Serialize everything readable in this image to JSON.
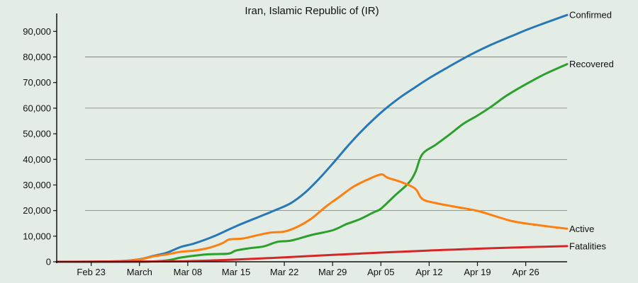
{
  "chart_data": {
    "type": "line",
    "title": "Iran, Islamic Republic of (IR)",
    "xlabel": "",
    "ylabel": "",
    "x_ticks": [
      "Feb 23",
      "March",
      "Mar 08",
      "Mar 15",
      "Mar 22",
      "Mar 29",
      "Apr 05",
      "Apr 12",
      "Apr 19",
      "Apr 26"
    ],
    "y_ticks": [
      "0",
      "10,000",
      "20,000",
      "30,000",
      "40,000",
      "50,000",
      "60,000",
      "70,000",
      "80,000",
      "90,000"
    ],
    "ylim": [
      0,
      97000
    ],
    "xlim": [
      "2020-02-18",
      "2020-05-02"
    ],
    "grid": "horizontal",
    "legend": "end-of-line labels",
    "series": [
      {
        "name": "Confirmed",
        "color": "#2878b8",
        "points": [
          [
            "2020-02-18",
            0
          ],
          [
            "2020-02-23",
            40
          ],
          [
            "2020-02-27",
            250
          ],
          [
            "2020-03-01",
            980
          ],
          [
            "2020-03-03",
            2300
          ],
          [
            "2020-03-05",
            3600
          ],
          [
            "2020-03-07",
            5800
          ],
          [
            "2020-03-09",
            7200
          ],
          [
            "2020-03-12",
            10200
          ],
          [
            "2020-03-15",
            13900
          ],
          [
            "2020-03-18",
            17200
          ],
          [
            "2020-03-21",
            20500
          ],
          [
            "2020-03-23",
            23000
          ],
          [
            "2020-03-25",
            27000
          ],
          [
            "2020-03-27",
            32300
          ],
          [
            "2020-03-29",
            38300
          ],
          [
            "2020-03-31",
            44600
          ],
          [
            "2020-04-02",
            50500
          ],
          [
            "2020-04-04",
            55800
          ],
          [
            "2020-04-06",
            60500
          ],
          [
            "2020-04-08",
            64600
          ],
          [
            "2020-04-10",
            68200
          ],
          [
            "2020-04-12",
            71700
          ],
          [
            "2020-04-15",
            76400
          ],
          [
            "2020-04-18",
            80900
          ],
          [
            "2020-04-21",
            84800
          ],
          [
            "2020-04-24",
            88200
          ],
          [
            "2020-04-27",
            91500
          ],
          [
            "2020-05-02",
            96400
          ]
        ]
      },
      {
        "name": "Recovered",
        "color": "#2ca02c",
        "points": [
          [
            "2020-02-18",
            0
          ],
          [
            "2020-03-01",
            0
          ],
          [
            "2020-03-05",
            550
          ],
          [
            "2020-03-07",
            1650
          ],
          [
            "2020-03-10",
            2700
          ],
          [
            "2020-03-12",
            3000
          ],
          [
            "2020-03-14",
            3200
          ],
          [
            "2020-03-15",
            4400
          ],
          [
            "2020-03-17",
            5300
          ],
          [
            "2020-03-19",
            6000
          ],
          [
            "2020-03-21",
            7800
          ],
          [
            "2020-03-23",
            8300
          ],
          [
            "2020-03-26",
            10500
          ],
          [
            "2020-03-29",
            12300
          ],
          [
            "2020-03-31",
            14700
          ],
          [
            "2020-04-02",
            16700
          ],
          [
            "2020-04-04",
            19400
          ],
          [
            "2020-04-05",
            20700
          ],
          [
            "2020-04-07",
            25800
          ],
          [
            "2020-04-09",
            30700
          ],
          [
            "2020-04-10",
            35000
          ],
          [
            "2020-04-11",
            42000
          ],
          [
            "2020-04-13",
            45800
          ],
          [
            "2020-04-15",
            49800
          ],
          [
            "2020-04-17",
            54000
          ],
          [
            "2020-04-19",
            57100
          ],
          [
            "2020-04-21",
            60600
          ],
          [
            "2020-04-23",
            64500
          ],
          [
            "2020-04-25",
            67800
          ],
          [
            "2020-04-27",
            70800
          ],
          [
            "2020-04-29",
            73600
          ],
          [
            "2020-05-02",
            77200
          ]
        ]
      },
      {
        "name": "Active",
        "color": "#ff7f0e",
        "points": [
          [
            "2020-02-18",
            0
          ],
          [
            "2020-02-23",
            30
          ],
          [
            "2020-02-27",
            250
          ],
          [
            "2020-03-01",
            900
          ],
          [
            "2020-03-03",
            2100
          ],
          [
            "2020-03-05",
            2900
          ],
          [
            "2020-03-07",
            3900
          ],
          [
            "2020-03-09",
            4400
          ],
          [
            "2020-03-11",
            5400
          ],
          [
            "2020-03-13",
            7200
          ],
          [
            "2020-03-14",
            8700
          ],
          [
            "2020-03-16",
            9100
          ],
          [
            "2020-03-18",
            10300
          ],
          [
            "2020-03-20",
            11400
          ],
          [
            "2020-03-22",
            11800
          ],
          [
            "2020-03-24",
            13800
          ],
          [
            "2020-03-26",
            17000
          ],
          [
            "2020-03-28",
            21500
          ],
          [
            "2020-03-30",
            25400
          ],
          [
            "2020-04-01",
            29300
          ],
          [
            "2020-04-03",
            32000
          ],
          [
            "2020-04-05",
            34100
          ],
          [
            "2020-04-06",
            32800
          ],
          [
            "2020-04-08",
            31100
          ],
          [
            "2020-04-10",
            28500
          ],
          [
            "2020-04-11",
            24500
          ],
          [
            "2020-04-13",
            22900
          ],
          [
            "2020-04-16",
            21400
          ],
          [
            "2020-04-19",
            19900
          ],
          [
            "2020-04-21",
            18300
          ],
          [
            "2020-04-24",
            15900
          ],
          [
            "2020-04-27",
            14600
          ],
          [
            "2020-05-02",
            12900
          ]
        ]
      },
      {
        "name": "Fatalities",
        "color": "#d62728",
        "points": [
          [
            "2020-02-18",
            0
          ],
          [
            "2020-03-01",
            100
          ],
          [
            "2020-03-08",
            250
          ],
          [
            "2020-03-15",
            850
          ],
          [
            "2020-03-22",
            1700
          ],
          [
            "2020-03-29",
            2700
          ],
          [
            "2020-04-05",
            3600
          ],
          [
            "2020-04-12",
            4400
          ],
          [
            "2020-04-19",
            5100
          ],
          [
            "2020-04-26",
            5700
          ],
          [
            "2020-05-02",
            6100
          ]
        ]
      }
    ]
  }
}
